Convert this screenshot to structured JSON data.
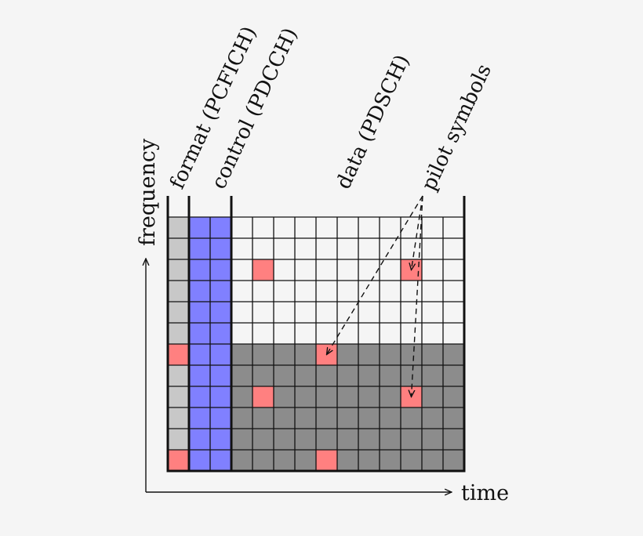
{
  "labels": {
    "format": "format (PCFICH)",
    "control": "control (PDCCH)",
    "data": "data (PDSCH)",
    "pilot": "pilot symbols",
    "frequency_axis": "frequency",
    "time_axis": "time"
  },
  "grid": {
    "columns": 14,
    "rows": 12,
    "format_columns": 1,
    "control_columns": 2,
    "lower_region_rows": 6
  },
  "pilot_cells": [
    {
      "row": 6,
      "col": 0
    },
    {
      "row": 11,
      "col": 0
    },
    {
      "row": 2,
      "col": 4
    },
    {
      "row": 6,
      "col": 7
    },
    {
      "row": 2,
      "col": 11
    },
    {
      "row": 8,
      "col": 4
    },
    {
      "row": 11,
      "col": 7
    },
    {
      "row": 8,
      "col": 11
    }
  ],
  "pilot_arrows": [
    {
      "to_row": 6,
      "to_col": 7
    },
    {
      "to_row": 2,
      "to_col": 11
    },
    {
      "to_row": 8,
      "to_col": 11
    }
  ],
  "colors": {
    "format_region": "#c8c8c8",
    "control_region": "#8080ff",
    "data_upper": "#f5f5f5",
    "data_lower": "#8c8c8c",
    "pilot": "#ff8080",
    "lines": "#111111"
  }
}
